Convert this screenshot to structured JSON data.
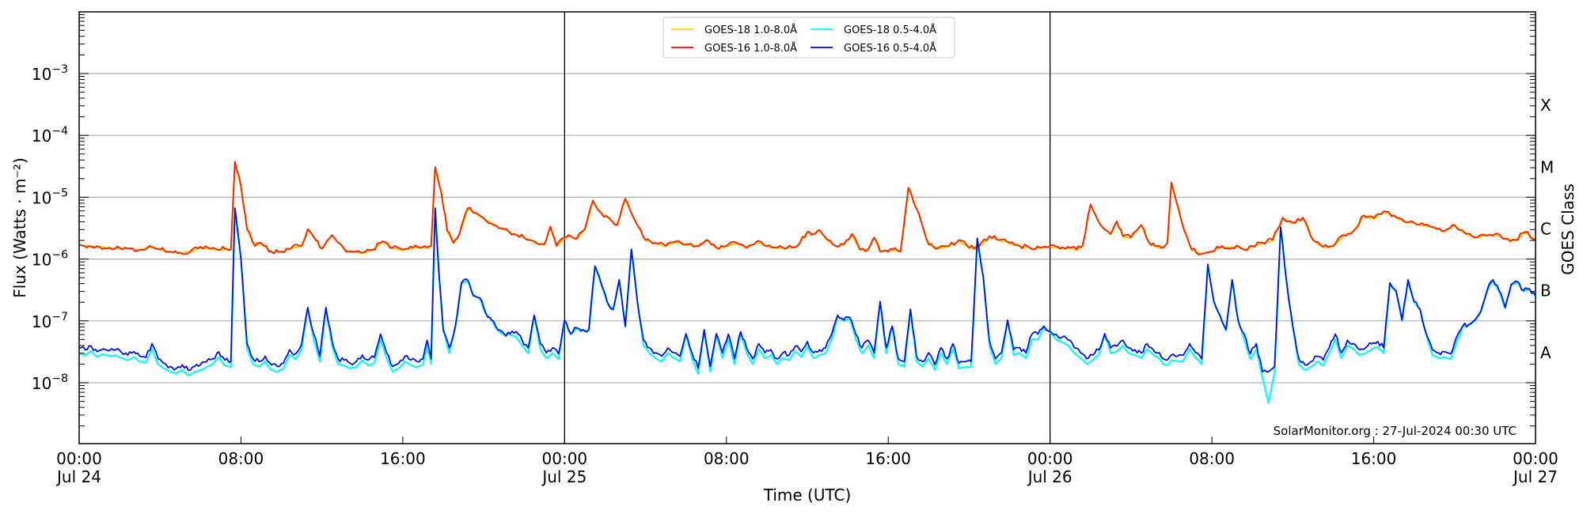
{
  "chart_data": {
    "type": "line",
    "title": "",
    "xlabel": "Time (UTC)",
    "ylabel": "Flux (Watts · m⁻²)",
    "ylabel_right": "GOES Class",
    "yscale": "log",
    "ylim": [
      1e-09,
      0.01
    ],
    "xlim_hours": [
      0,
      72
    ],
    "x_ticks": [
      {
        "hour": 0,
        "label": "00:00",
        "sublabel": "Jul 24"
      },
      {
        "hour": 8,
        "label": "08:00",
        "sublabel": ""
      },
      {
        "hour": 16,
        "label": "16:00",
        "sublabel": ""
      },
      {
        "hour": 24,
        "label": "00:00",
        "sublabel": "Jul 25"
      },
      {
        "hour": 32,
        "label": "08:00",
        "sublabel": ""
      },
      {
        "hour": 40,
        "label": "16:00",
        "sublabel": ""
      },
      {
        "hour": 48,
        "label": "00:00",
        "sublabel": "Jul 26"
      },
      {
        "hour": 56,
        "label": "08:00",
        "sublabel": ""
      },
      {
        "hour": 64,
        "label": "16:00",
        "sublabel": ""
      },
      {
        "hour": 72,
        "label": "00:00",
        "sublabel": "Jul 27"
      }
    ],
    "y_ticks": [
      {
        "exp": -3,
        "label": "10",
        "sup": "−3"
      },
      {
        "exp": -4,
        "label": "10",
        "sup": "−4"
      },
      {
        "exp": -5,
        "label": "10",
        "sup": "−5"
      },
      {
        "exp": -6,
        "label": "10",
        "sup": "−6"
      },
      {
        "exp": -7,
        "label": "10",
        "sup": "−7"
      },
      {
        "exp": -8,
        "label": "10",
        "sup": "−8"
      }
    ],
    "goes_classes": [
      {
        "label": "X",
        "exp": -3.5
      },
      {
        "label": "M",
        "exp": -4.5
      },
      {
        "label": "C",
        "exp": -5.5
      },
      {
        "label": "B",
        "exp": -6.5
      },
      {
        "label": "A",
        "exp": -7.5
      }
    ],
    "day_boundaries_hours": [
      24,
      48
    ],
    "grid": {
      "horizontal": true,
      "vertical": false
    },
    "legend_position": "upper center",
    "legend": [
      {
        "label": "GOES-18 1.0-8.0Å",
        "color": "#ffd700"
      },
      {
        "label": "GOES-16 1.0-8.0Å",
        "color": "#ff0000"
      },
      {
        "label": "GOES-18 0.5-4.0Å",
        "color": "#00ffff"
      },
      {
        "label": "GOES-16 0.5-4.0Å",
        "color": "#0000ff"
      }
    ],
    "annotation": "SolarMonitor.org : 27-Jul-2024 00:30 UTC",
    "series": [
      {
        "name": "GOES-18 1.0-8.0Å",
        "color": "#ffcc00",
        "width": 2.2,
        "x_hours": [
          0,
          0.5,
          1,
          1.5,
          2,
          2.5,
          3,
          3.5,
          4,
          4.5,
          5,
          5.5,
          6,
          6.5,
          7,
          7.2,
          7.5,
          7.7,
          8,
          8.3,
          8.7,
          9,
          9.5,
          10,
          10.5,
          11,
          11.3,
          11.7,
          12,
          12.5,
          13,
          13.3,
          13.7,
          14,
          14.5,
          15,
          15.5,
          16,
          16.5,
          17,
          17.2,
          17.4,
          17.6,
          17.9,
          18.2,
          18.5,
          18.8,
          19.2,
          19.6,
          20,
          20.5,
          21,
          21.5,
          22,
          22.3,
          22.6,
          23,
          23.3,
          23.6,
          24,
          24.3,
          24.6,
          25,
          25.4,
          25.8,
          26.2,
          26.6,
          27,
          27.5,
          28,
          28.5,
          29,
          29.5,
          30,
          30.5,
          31,
          31.5,
          32,
          32.5,
          33,
          33.5,
          34,
          34.5,
          35,
          35.5,
          36,
          36.3,
          36.6,
          37,
          37.4,
          37.8,
          38.2,
          38.6,
          39,
          39.3,
          39.6,
          39.9,
          40.2,
          40.6,
          41,
          41.5,
          42,
          42.5,
          43,
          43.5,
          44,
          44.5,
          45,
          45.5,
          46,
          46.5,
          47,
          47.5,
          48,
          48.5,
          49,
          49.3,
          49.6,
          50,
          50.5,
          51,
          51.3,
          51.6,
          52,
          52.5,
          52.9,
          53.2,
          53.5,
          53.8,
          54,
          54.5,
          55,
          55.5,
          56,
          56.5,
          57,
          57.3,
          57.6,
          58,
          58.5,
          59,
          59.5,
          60,
          60.5,
          61,
          61.5,
          62,
          62.5,
          63,
          63.5,
          64,
          64.5,
          65,
          65.5,
          66,
          66.5,
          67,
          67.5,
          68,
          68.5,
          69,
          69.5,
          70,
          70.5,
          71,
          71.5,
          72
        ],
        "values": [
          1.7e-06,
          1.6e-06,
          1.55e-06,
          1.5e-06,
          1.5e-06,
          1.45e-06,
          1.4e-06,
          1.6e-06,
          1.4e-06,
          1.3e-06,
          1.25e-06,
          1.3e-06,
          1.55e-06,
          1.45e-06,
          1.4e-06,
          1.45e-06,
          1.4e-06,
          3.7e-05,
          1.5e-05,
          3e-06,
          1.6e-06,
          1.8e-06,
          1.3e-06,
          1.3e-06,
          1.5e-06,
          1.6e-06,
          3e-06,
          2e-06,
          1.45e-06,
          2.4e-06,
          1.6e-06,
          1.3e-06,
          1.3e-06,
          1.25e-06,
          1.4e-06,
          1.9e-06,
          1.5e-06,
          1.4e-06,
          1.5e-06,
          1.55e-06,
          1.5e-06,
          1.6e-06,
          3e-05,
          1.2e-05,
          2.8e-06,
          1.8e-06,
          2.5e-06,
          6.5e-06,
          5.5e-06,
          4.5e-06,
          3.5e-06,
          3e-06,
          2.5e-06,
          2.2e-06,
          2e-06,
          1.8e-06,
          1.7e-06,
          3.3e-06,
          1.6e-06,
          2.2e-06,
          2.3e-06,
          2.1e-06,
          3e-06,
          8.7e-06,
          5.5e-06,
          4.5e-06,
          3.5e-06,
          9.3e-06,
          4e-06,
          2e-06,
          1.8e-06,
          1.6e-06,
          1.9e-06,
          1.7e-06,
          1.6e-06,
          2e-06,
          1.5e-06,
          1.6e-06,
          1.8e-06,
          1.5e-06,
          1.9e-06,
          1.6e-06,
          1.5e-06,
          1.5e-06,
          1.6e-06,
          2.7e-06,
          2.5e-06,
          2.9e-06,
          2e-06,
          1.6e-06,
          1.7e-06,
          2.5e-06,
          1.4e-06,
          1.4e-06,
          2.2e-06,
          1.3e-06,
          1.35e-06,
          1.4e-06,
          1.3e-06,
          1.4e-05,
          5.5e-06,
          1.7e-06,
          1.5e-06,
          1.6e-06,
          2e-06,
          1.5e-06,
          1.6e-06,
          2.3e-06,
          2e-06,
          1.8e-06,
          1.6e-06,
          1.5e-06,
          1.5e-06,
          1.6e-06,
          1.45e-06,
          1.5e-06,
          1.4e-06,
          1.6e-06,
          7.5e-06,
          3.5e-06,
          2.5e-06,
          4e-06,
          2.3e-06,
          2.2e-06,
          3.5e-06,
          1.8e-06,
          1.6e-06,
          1.5e-06,
          1.8e-06,
          1.7e-05,
          4e-06,
          1.4e-06,
          1.2e-06,
          1.3e-06,
          1.6e-06,
          1.5e-06,
          1.6e-06,
          1.4e-06,
          1.6e-06,
          1.8e-06,
          2e-06,
          4.6e-06,
          3.8e-06,
          4.6e-06,
          2e-06,
          1.55e-06,
          1.6e-06,
          2.4e-06,
          2.8e-06,
          5e-06,
          4.5e-06,
          5.8e-06,
          5e-06,
          4e-06,
          3.8e-06,
          3.5e-06,
          3.2e-06,
          2.8e-06,
          3.5e-06,
          2.6e-06,
          2.2e-06,
          2.4e-06,
          2.5e-06,
          2.1e-06,
          2e-06,
          2.7e-06,
          2e-06,
          2.9e-06,
          2.8e-06,
          4e-06,
          2.6e-06,
          2.3e-06,
          2.3e-06,
          2.2e-06,
          2.3e-06
        ]
      },
      {
        "name": "GOES-16 1.0-8.0Å",
        "color": "#ff1e00",
        "width": 1.8,
        "x_hours": "same_as_series_0",
        "values": "same_as_series_0"
      },
      {
        "name": "GOES-18 0.5-4.0Å",
        "color": "#00ffff",
        "width": 2.2,
        "x_hours": [
          0,
          0.3,
          0.6,
          0.9,
          1.2,
          1.5,
          1.8,
          2.1,
          2.4,
          2.7,
          3,
          3.3,
          3.6,
          3.9,
          4.2,
          4.5,
          4.8,
          5.1,
          5.4,
          5.7,
          6,
          6.3,
          6.6,
          6.9,
          7.2,
          7.5,
          7.7,
          8,
          8.3,
          8.6,
          8.9,
          9.2,
          9.5,
          9.8,
          10.1,
          10.4,
          10.7,
          11,
          11.3,
          11.6,
          11.9,
          12.2,
          12.5,
          12.8,
          13.1,
          13.4,
          13.7,
          14,
          14.3,
          14.6,
          14.9,
          15.2,
          15.5,
          15.8,
          16.1,
          16.4,
          16.7,
          17,
          17.2,
          17.4,
          17.6,
          17.8,
          18,
          18.3,
          18.6,
          18.9,
          19.2,
          19.5,
          19.8,
          20.1,
          20.4,
          20.7,
          21,
          21.3,
          21.6,
          21.9,
          22.2,
          22.5,
          22.8,
          23.1,
          23.4,
          23.7,
          24,
          24.3,
          24.6,
          24.9,
          25.2,
          25.5,
          25.8,
          26.1,
          26.4,
          26.7,
          27,
          27.3,
          27.6,
          27.9,
          28.2,
          28.5,
          28.8,
          29.1,
          29.4,
          29.7,
          30,
          30.3,
          30.6,
          30.9,
          31.2,
          31.5,
          31.8,
          32.1,
          32.4,
          32.7,
          33,
          33.3,
          33.6,
          33.9,
          34.2,
          34.5,
          34.8,
          35.1,
          35.4,
          35.7,
          36,
          36.3,
          36.6,
          36.9,
          37.2,
          37.5,
          37.8,
          38.1,
          38.4,
          38.7,
          39,
          39.3,
          39.6,
          39.9,
          40.2,
          40.5,
          40.8,
          41.1,
          41.4,
          41.7,
          42,
          42.3,
          42.6,
          42.9,
          43.2,
          43.5,
          43.8,
          44.1,
          44.4,
          44.7,
          45,
          45.3,
          45.6,
          45.9,
          46.2,
          46.5,
          46.8,
          47.1,
          47.4,
          47.7,
          48,
          48.3,
          48.6,
          48.9,
          49.2,
          49.5,
          49.8,
          50.1,
          50.4,
          50.7,
          51,
          51.3,
          51.6,
          51.9,
          52.2,
          52.5,
          52.8,
          53.1,
          53.4,
          53.6,
          53.8,
          54,
          54.3,
          54.6,
          54.9,
          55.2,
          55.5,
          55.8,
          56.1,
          56.4,
          56.7,
          57,
          57.3,
          57.6,
          57.9,
          58.2,
          58.5,
          58.8,
          59.1,
          59.4,
          59.7,
          60,
          60.3,
          60.6,
          60.9,
          61.2,
          61.5,
          61.8,
          62.1,
          62.4,
          62.7,
          63,
          63.3,
          63.6,
          63.9,
          64.2,
          64.5,
          64.8,
          65.1,
          65.4,
          65.7,
          66,
          66.3,
          66.6,
          66.9,
          67.2,
          67.5,
          67.8,
          68.1,
          68.4,
          68.7,
          69,
          69.3,
          69.6,
          69.9,
          70.2,
          70.5,
          70.8,
          71.1,
          71.4,
          71.7,
          72
        ],
        "values": [
          3e-08,
          2.8e-08,
          3.2e-08,
          2.6e-08,
          2.9e-08,
          2.7e-08,
          2.8e-08,
          2.5e-08,
          2.3e-08,
          2.6e-08,
          2.2e-08,
          2.1e-08,
          3.5e-08,
          2e-08,
          1.7e-08,
          1.5e-08,
          1.4e-08,
          1.6e-08,
          1.3e-08,
          1.5e-08,
          1.6e-08,
          1.8e-08,
          2e-08,
          2.6e-08,
          1.9e-08,
          1.8e-08,
          6.5e-06,
          1e-06,
          3.5e-08,
          2e-08,
          1.8e-08,
          2.2e-08,
          1.6e-08,
          1.5e-08,
          1.7e-08,
          2.8e-08,
          2.4e-08,
          3.5e-08,
          1.6e-07,
          5e-08,
          2.2e-08,
          1.6e-07,
          4e-08,
          2e-08,
          1.9e-08,
          1.7e-08,
          1.8e-08,
          2.3e-08,
          1.9e-08,
          2.1e-08,
          5e-08,
          2.5e-08,
          1.5e-08,
          1.7e-08,
          2.2e-08,
          1.9e-08,
          1.8e-08,
          2e-08,
          4e-08,
          2e-08,
          6.5e-06,
          5e-07,
          7e-08,
          3e-08,
          8e-08,
          4e-07,
          4.5e-07,
          2.5e-07,
          2.3e-07,
          1.3e-07,
          1e-07,
          7e-08,
          6e-08,
          6e-08,
          5.5e-08,
          4e-08,
          3e-08,
          1.2e-07,
          3.5e-08,
          2.5e-08,
          3e-08,
          2.4e-08,
          1e-07,
          6e-08,
          7.5e-08,
          7e-08,
          7e-08,
          7.5e-07,
          4e-07,
          2e-07,
          1.5e-07,
          4.5e-07,
          8e-08,
          1.4e-06,
          2e-07,
          4e-08,
          3e-08,
          2.5e-08,
          2.2e-08,
          3e-08,
          2.5e-08,
          2.2e-08,
          6e-08,
          2.5e-08,
          1.4e-08,
          7e-08,
          1.5e-08,
          6e-08,
          2.5e-08,
          5e-08,
          2e-08,
          6.5e-08,
          3e-08,
          2e-08,
          3.5e-08,
          2.5e-08,
          2.8e-08,
          2e-08,
          2.5e-08,
          2.3e-08,
          3.2e-08,
          2.6e-08,
          3.8e-08,
          2.5e-08,
          2.8e-08,
          3e-08,
          5e-08,
          1.2e-07,
          1e-07,
          1.1e-07,
          5e-08,
          3e-08,
          4e-08,
          2.5e-08,
          2e-07,
          3e-08,
          8e-08,
          2e-08,
          1.8e-08,
          1.5e-07,
          2.2e-08,
          1.8e-08,
          2.5e-08,
          1.6e-08,
          3e-08,
          2e-08,
          3.5e-08,
          1.7e-08,
          1.8e-08,
          1.8e-08,
          2.1e-06,
          5e-07,
          4e-08,
          2e-08,
          2.5e-08,
          1e-07,
          2.8e-08,
          3e-08,
          2.5e-08,
          5e-08,
          5e-08,
          8e-08,
          6.5e-08,
          5e-08,
          4.5e-08,
          4e-08,
          3e-08,
          2.5e-08,
          2e-08,
          2.3e-08,
          2.8e-08,
          6e-08,
          3e-08,
          3.2e-08,
          4e-08,
          3e-08,
          2.8e-08,
          2.5e-08,
          3.5e-08,
          2.8e-08,
          2.5e-08,
          2e-08,
          1.9e-08,
          2.3e-08,
          2.2e-08,
          2.3e-08,
          3.5e-08,
          2.5e-08,
          2e-08,
          8e-07,
          2e-07,
          1.2e-07,
          7e-08,
          4.5e-07,
          1e-07,
          5e-08,
          2.4e-08,
          3.5e-08,
          1.2e-08,
          4.7e-09,
          1.5e-08,
          3.2e-06,
          4e-07,
          8e-08,
          2e-08,
          1.6e-08,
          1.8e-08,
          2.2e-08,
          1.9e-08,
          3e-08,
          5e-08,
          2.5e-08,
          4e-08,
          3.5e-08,
          2.8e-08,
          3e-08,
          3.5e-08,
          3.8e-08,
          3e-08,
          4e-07,
          3e-07,
          1e-07,
          4.5e-07,
          2e-07,
          1.5e-07,
          6e-08,
          2.8e-08,
          2.5e-08,
          2.6e-08,
          2.4e-08,
          4.5e-08,
          8e-08,
          8.5e-08,
          1e-07,
          1.4e-07,
          3e-07,
          4.5e-07,
          3e-07,
          1.6e-07,
          3.8e-07,
          4.2e-07,
          3e-07,
          3.2e-07,
          2.5e-07,
          2e-07
        ]
      },
      {
        "name": "GOES-16 0.5-4.0Å",
        "color": "#0010ee",
        "width": 1.8,
        "x_hours": "same_as_series_2",
        "values_offset_note": "tracks GOES-18 0.5-4.0 closely, slightly higher in quiet periods"
      }
    ]
  }
}
